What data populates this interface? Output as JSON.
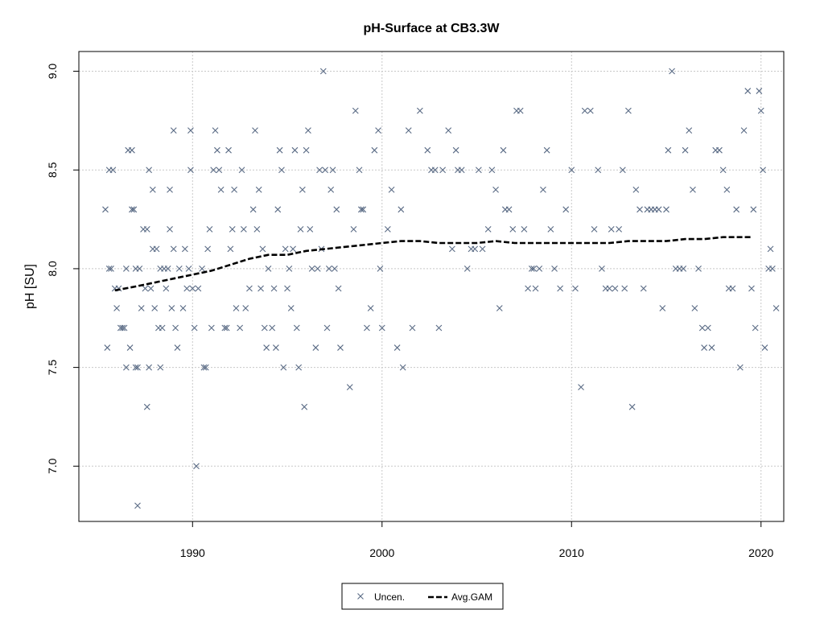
{
  "chart_data": {
    "type": "scatter",
    "title": "pH-Surface at CB3.3W",
    "xlabel": "",
    "ylabel": "pH [SU]",
    "xlim": [
      1984,
      2021.2
    ],
    "ylim": [
      6.72,
      9.1
    ],
    "x_ticks": [
      1990,
      2000,
      2010,
      2020
    ],
    "y_ticks": [
      7.0,
      7.5,
      8.0,
      8.5,
      9.0
    ],
    "x_tick_labels": [
      "1990",
      "2000",
      "2010",
      "2020"
    ],
    "y_tick_labels": [
      "7.0",
      "7.5",
      "8.0",
      "8.5",
      "9.0"
    ],
    "grid": true,
    "legend_position": "bottom-center",
    "colors": {
      "points": "#5a6b85",
      "gam": "#000000",
      "grid": "#c8c8c8"
    },
    "series": [
      {
        "name": "Uncen.",
        "kind": "points",
        "marker": "x",
        "points": [
          [
            1985.4,
            8.3
          ],
          [
            1985.6,
            8.5
          ],
          [
            1985.8,
            8.5
          ],
          [
            1985.5,
            7.6
          ],
          [
            1985.6,
            8.0
          ],
          [
            1985.7,
            8.0
          ],
          [
            1985.9,
            7.9
          ],
          [
            1986.0,
            7.8
          ],
          [
            1986.1,
            7.9
          ],
          [
            1986.2,
            7.7
          ],
          [
            1986.3,
            7.7
          ],
          [
            1986.4,
            7.7
          ],
          [
            1986.5,
            7.5
          ],
          [
            1986.5,
            8.0
          ],
          [
            1986.6,
            8.6
          ],
          [
            1986.7,
            7.6
          ],
          [
            1986.8,
            8.3
          ],
          [
            1986.8,
            8.6
          ],
          [
            1986.9,
            8.3
          ],
          [
            1987.0,
            8.0
          ],
          [
            1987.0,
            7.5
          ],
          [
            1987.1,
            7.5
          ],
          [
            1987.2,
            8.0
          ],
          [
            1987.1,
            6.8
          ],
          [
            1987.3,
            7.8
          ],
          [
            1987.4,
            8.2
          ],
          [
            1987.5,
            7.9
          ],
          [
            1987.6,
            7.3
          ],
          [
            1987.6,
            8.2
          ],
          [
            1987.7,
            8.5
          ],
          [
            1987.7,
            7.5
          ],
          [
            1987.8,
            7.9
          ],
          [
            1987.9,
            8.4
          ],
          [
            1987.9,
            8.1
          ],
          [
            1988.0,
            7.8
          ],
          [
            1988.1,
            8.1
          ],
          [
            1988.2,
            7.7
          ],
          [
            1988.3,
            8.0
          ],
          [
            1988.3,
            7.5
          ],
          [
            1988.4,
            7.7
          ],
          [
            1988.5,
            8.0
          ],
          [
            1988.6,
            7.9
          ],
          [
            1988.7,
            8.0
          ],
          [
            1988.8,
            8.4
          ],
          [
            1988.8,
            8.2
          ],
          [
            1988.9,
            7.8
          ],
          [
            1989.0,
            8.7
          ],
          [
            1989.0,
            8.1
          ],
          [
            1989.1,
            7.7
          ],
          [
            1989.2,
            7.6
          ],
          [
            1989.3,
            8.0
          ],
          [
            1989.5,
            7.8
          ],
          [
            1989.6,
            8.1
          ],
          [
            1989.7,
            7.9
          ],
          [
            1989.8,
            8.0
          ],
          [
            1989.9,
            8.5
          ],
          [
            1989.9,
            8.7
          ],
          [
            1990.0,
            7.9
          ],
          [
            1990.1,
            7.7
          ],
          [
            1990.2,
            7.0
          ],
          [
            1990.3,
            7.9
          ],
          [
            1990.5,
            8.0
          ],
          [
            1990.6,
            7.5
          ],
          [
            1990.7,
            7.5
          ],
          [
            1990.8,
            8.1
          ],
          [
            1990.9,
            8.2
          ],
          [
            1991.0,
            7.7
          ],
          [
            1991.1,
            8.5
          ],
          [
            1991.2,
            8.7
          ],
          [
            1991.3,
            8.6
          ],
          [
            1991.4,
            8.5
          ],
          [
            1991.5,
            8.4
          ],
          [
            1991.7,
            7.7
          ],
          [
            1991.8,
            7.7
          ],
          [
            1991.9,
            8.6
          ],
          [
            1992.0,
            8.1
          ],
          [
            1992.1,
            8.2
          ],
          [
            1992.2,
            8.4
          ],
          [
            1992.3,
            7.8
          ],
          [
            1992.5,
            7.7
          ],
          [
            1992.6,
            8.5
          ],
          [
            1992.7,
            8.2
          ],
          [
            1992.8,
            7.8
          ],
          [
            1993.0,
            7.9
          ],
          [
            1993.2,
            8.3
          ],
          [
            1993.3,
            8.7
          ],
          [
            1993.4,
            8.2
          ],
          [
            1993.5,
            8.4
          ],
          [
            1993.6,
            7.9
          ],
          [
            1993.7,
            8.1
          ],
          [
            1993.8,
            7.7
          ],
          [
            1993.9,
            7.6
          ],
          [
            1994.0,
            8.0
          ],
          [
            1994.2,
            7.7
          ],
          [
            1994.3,
            7.9
          ],
          [
            1994.4,
            7.6
          ],
          [
            1994.5,
            8.3
          ],
          [
            1994.6,
            8.6
          ],
          [
            1994.7,
            8.5
          ],
          [
            1994.8,
            7.5
          ],
          [
            1994.9,
            8.1
          ],
          [
            1995.0,
            7.9
          ],
          [
            1995.1,
            8.0
          ],
          [
            1995.2,
            7.8
          ],
          [
            1995.3,
            8.1
          ],
          [
            1995.4,
            8.6
          ],
          [
            1995.5,
            7.7
          ],
          [
            1995.6,
            7.5
          ],
          [
            1995.7,
            8.2
          ],
          [
            1995.8,
            8.4
          ],
          [
            1995.9,
            7.3
          ],
          [
            1996.0,
            8.6
          ],
          [
            1996.1,
            8.7
          ],
          [
            1996.2,
            8.2
          ],
          [
            1996.3,
            8.0
          ],
          [
            1996.5,
            7.6
          ],
          [
            1996.6,
            8.0
          ],
          [
            1996.7,
            8.5
          ],
          [
            1996.8,
            8.1
          ],
          [
            1996.9,
            9.0
          ],
          [
            1997.0,
            8.5
          ],
          [
            1997.1,
            7.7
          ],
          [
            1997.2,
            8.0
          ],
          [
            1997.3,
            8.4
          ],
          [
            1997.4,
            8.5
          ],
          [
            1997.5,
            8.0
          ],
          [
            1997.6,
            8.3
          ],
          [
            1997.7,
            7.9
          ],
          [
            1997.8,
            7.6
          ],
          [
            1998.3,
            7.4
          ],
          [
            1998.5,
            8.2
          ],
          [
            1998.6,
            8.8
          ],
          [
            1998.8,
            8.5
          ],
          [
            1998.9,
            8.3
          ],
          [
            1999.0,
            8.3
          ],
          [
            1999.2,
            7.7
          ],
          [
            1999.4,
            7.8
          ],
          [
            1999.6,
            8.6
          ],
          [
            1999.8,
            8.7
          ],
          [
            1999.9,
            8.0
          ],
          [
            2000.0,
            7.7
          ],
          [
            2000.3,
            8.2
          ],
          [
            2000.5,
            8.4
          ],
          [
            2000.8,
            7.6
          ],
          [
            2001.0,
            8.3
          ],
          [
            2001.1,
            7.5
          ],
          [
            2001.4,
            8.7
          ],
          [
            2001.6,
            7.7
          ],
          [
            2002.0,
            8.8
          ],
          [
            2002.4,
            8.6
          ],
          [
            2002.6,
            8.5
          ],
          [
            2002.8,
            8.5
          ],
          [
            2003.0,
            7.7
          ],
          [
            2003.2,
            8.5
          ],
          [
            2003.5,
            8.7
          ],
          [
            2003.7,
            8.1
          ],
          [
            2003.9,
            8.6
          ],
          [
            2004.0,
            8.5
          ],
          [
            2004.2,
            8.5
          ],
          [
            2004.5,
            8.0
          ],
          [
            2004.7,
            8.1
          ],
          [
            2004.9,
            8.1
          ],
          [
            2005.1,
            8.5
          ],
          [
            2005.3,
            8.1
          ],
          [
            2005.6,
            8.2
          ],
          [
            2005.8,
            8.5
          ],
          [
            2006.0,
            8.4
          ],
          [
            2006.2,
            7.8
          ],
          [
            2006.4,
            8.6
          ],
          [
            2006.5,
            8.3
          ],
          [
            2006.7,
            8.3
          ],
          [
            2006.9,
            8.2
          ],
          [
            2007.1,
            8.8
          ],
          [
            2007.3,
            8.8
          ],
          [
            2007.5,
            8.2
          ],
          [
            2007.7,
            7.9
          ],
          [
            2007.9,
            8.0
          ],
          [
            2008.0,
            8.0
          ],
          [
            2008.1,
            7.9
          ],
          [
            2008.3,
            8.0
          ],
          [
            2008.5,
            8.4
          ],
          [
            2008.7,
            8.6
          ],
          [
            2008.9,
            8.2
          ],
          [
            2009.1,
            8.0
          ],
          [
            2009.4,
            7.9
          ],
          [
            2009.7,
            8.3
          ],
          [
            2010.0,
            8.5
          ],
          [
            2010.2,
            7.9
          ],
          [
            2010.5,
            7.4
          ],
          [
            2010.7,
            8.8
          ],
          [
            2011.0,
            8.8
          ],
          [
            2011.2,
            8.2
          ],
          [
            2011.4,
            8.5
          ],
          [
            2011.6,
            8.0
          ],
          [
            2011.8,
            7.9
          ],
          [
            2012.0,
            7.9
          ],
          [
            2012.1,
            8.2
          ],
          [
            2012.3,
            7.9
          ],
          [
            2012.5,
            8.2
          ],
          [
            2012.7,
            8.5
          ],
          [
            2012.8,
            7.9
          ],
          [
            2013.0,
            8.8
          ],
          [
            2013.2,
            7.3
          ],
          [
            2013.4,
            8.4
          ],
          [
            2013.6,
            8.3
          ],
          [
            2013.8,
            7.9
          ],
          [
            2014.0,
            8.3
          ],
          [
            2014.2,
            8.3
          ],
          [
            2014.4,
            8.3
          ],
          [
            2014.6,
            8.3
          ],
          [
            2014.8,
            7.8
          ],
          [
            2015.0,
            8.3
          ],
          [
            2015.1,
            8.6
          ],
          [
            2015.3,
            9.0
          ],
          [
            2015.5,
            8.0
          ],
          [
            2015.7,
            8.0
          ],
          [
            2015.9,
            8.0
          ],
          [
            2016.0,
            8.6
          ],
          [
            2016.2,
            8.7
          ],
          [
            2016.4,
            8.4
          ],
          [
            2016.5,
            7.8
          ],
          [
            2016.7,
            8.0
          ],
          [
            2016.9,
            7.7
          ],
          [
            2017.0,
            7.6
          ],
          [
            2017.2,
            7.7
          ],
          [
            2017.4,
            7.6
          ],
          [
            2017.6,
            8.6
          ],
          [
            2017.8,
            8.6
          ],
          [
            2018.0,
            8.5
          ],
          [
            2018.2,
            8.4
          ],
          [
            2018.3,
            7.9
          ],
          [
            2018.5,
            7.9
          ],
          [
            2018.7,
            8.3
          ],
          [
            2018.9,
            7.5
          ],
          [
            2019.1,
            8.7
          ],
          [
            2019.3,
            8.9
          ],
          [
            2019.5,
            7.9
          ],
          [
            2019.6,
            8.3
          ],
          [
            2019.7,
            7.7
          ],
          [
            2019.9,
            8.9
          ],
          [
            2020.0,
            8.8
          ],
          [
            2020.1,
            8.5
          ],
          [
            2020.2,
            7.6
          ],
          [
            2020.4,
            8.0
          ],
          [
            2020.5,
            8.1
          ],
          [
            2020.6,
            8.0
          ],
          [
            2020.8,
            7.8
          ],
          [
            2020.9,
            8.2
          ],
          [
            2021.0,
            8.0
          ],
          [
            2021.1,
            8.5
          ],
          [
            2021.2,
            8.0
          ]
        ]
      },
      {
        "name": "Avg.GAM",
        "kind": "line",
        "dash": true,
        "points": [
          [
            1985.9,
            7.89
          ],
          [
            1987.0,
            7.91
          ],
          [
            1988.0,
            7.93
          ],
          [
            1989.0,
            7.95
          ],
          [
            1990.0,
            7.97
          ],
          [
            1991.0,
            7.99
          ],
          [
            1992.0,
            8.02
          ],
          [
            1993.0,
            8.05
          ],
          [
            1994.0,
            8.07
          ],
          [
            1995.0,
            8.07
          ],
          [
            1996.0,
            8.09
          ],
          [
            1997.0,
            8.1
          ],
          [
            1998.0,
            8.11
          ],
          [
            1999.0,
            8.12
          ],
          [
            2000.0,
            8.13
          ],
          [
            2001.0,
            8.14
          ],
          [
            2002.0,
            8.14
          ],
          [
            2003.0,
            8.13
          ],
          [
            2004.0,
            8.13
          ],
          [
            2005.0,
            8.13
          ],
          [
            2006.0,
            8.14
          ],
          [
            2007.0,
            8.13
          ],
          [
            2008.0,
            8.13
          ],
          [
            2009.0,
            8.13
          ],
          [
            2010.0,
            8.13
          ],
          [
            2011.0,
            8.13
          ],
          [
            2012.0,
            8.13
          ],
          [
            2013.0,
            8.14
          ],
          [
            2014.0,
            8.14
          ],
          [
            2015.0,
            8.14
          ],
          [
            2016.0,
            8.15
          ],
          [
            2017.0,
            8.15
          ],
          [
            2018.0,
            8.16
          ],
          [
            2019.0,
            8.16
          ],
          [
            2019.5,
            8.16
          ]
        ]
      }
    ]
  }
}
